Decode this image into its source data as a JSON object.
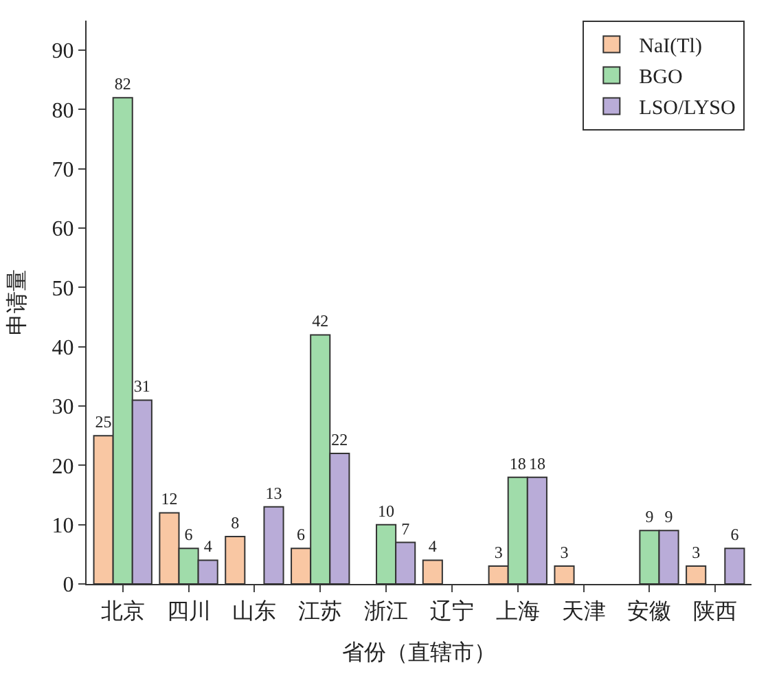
{
  "chart_data": {
    "type": "bar",
    "xlabel": "省份（直辖市）",
    "ylabel": "申请量",
    "categories": [
      "北京",
      "四川",
      "山东",
      "江苏",
      "浙江",
      "辽宁",
      "上海",
      "天津",
      "安徽",
      "陕西"
    ],
    "series": [
      {
        "name": "NaI(Tl)",
        "color": "#f9c7a3",
        "values": [
          25,
          12,
          8,
          6,
          null,
          4,
          3,
          3,
          null,
          3
        ]
      },
      {
        "name": "BGO",
        "color": "#a0dcaa",
        "values": [
          82,
          6,
          null,
          42,
          10,
          null,
          18,
          null,
          9,
          null
        ]
      },
      {
        "name": "LSO/LYSO",
        "color": "#b9acd8",
        "values": [
          31,
          4,
          13,
          22,
          7,
          null,
          18,
          null,
          9,
          6
        ]
      }
    ],
    "ylim": [
      0,
      95
    ],
    "yticks": [
      0,
      10,
      20,
      30,
      40,
      50,
      60,
      70,
      80,
      90
    ],
    "data_labels": true,
    "legend": "top right"
  }
}
